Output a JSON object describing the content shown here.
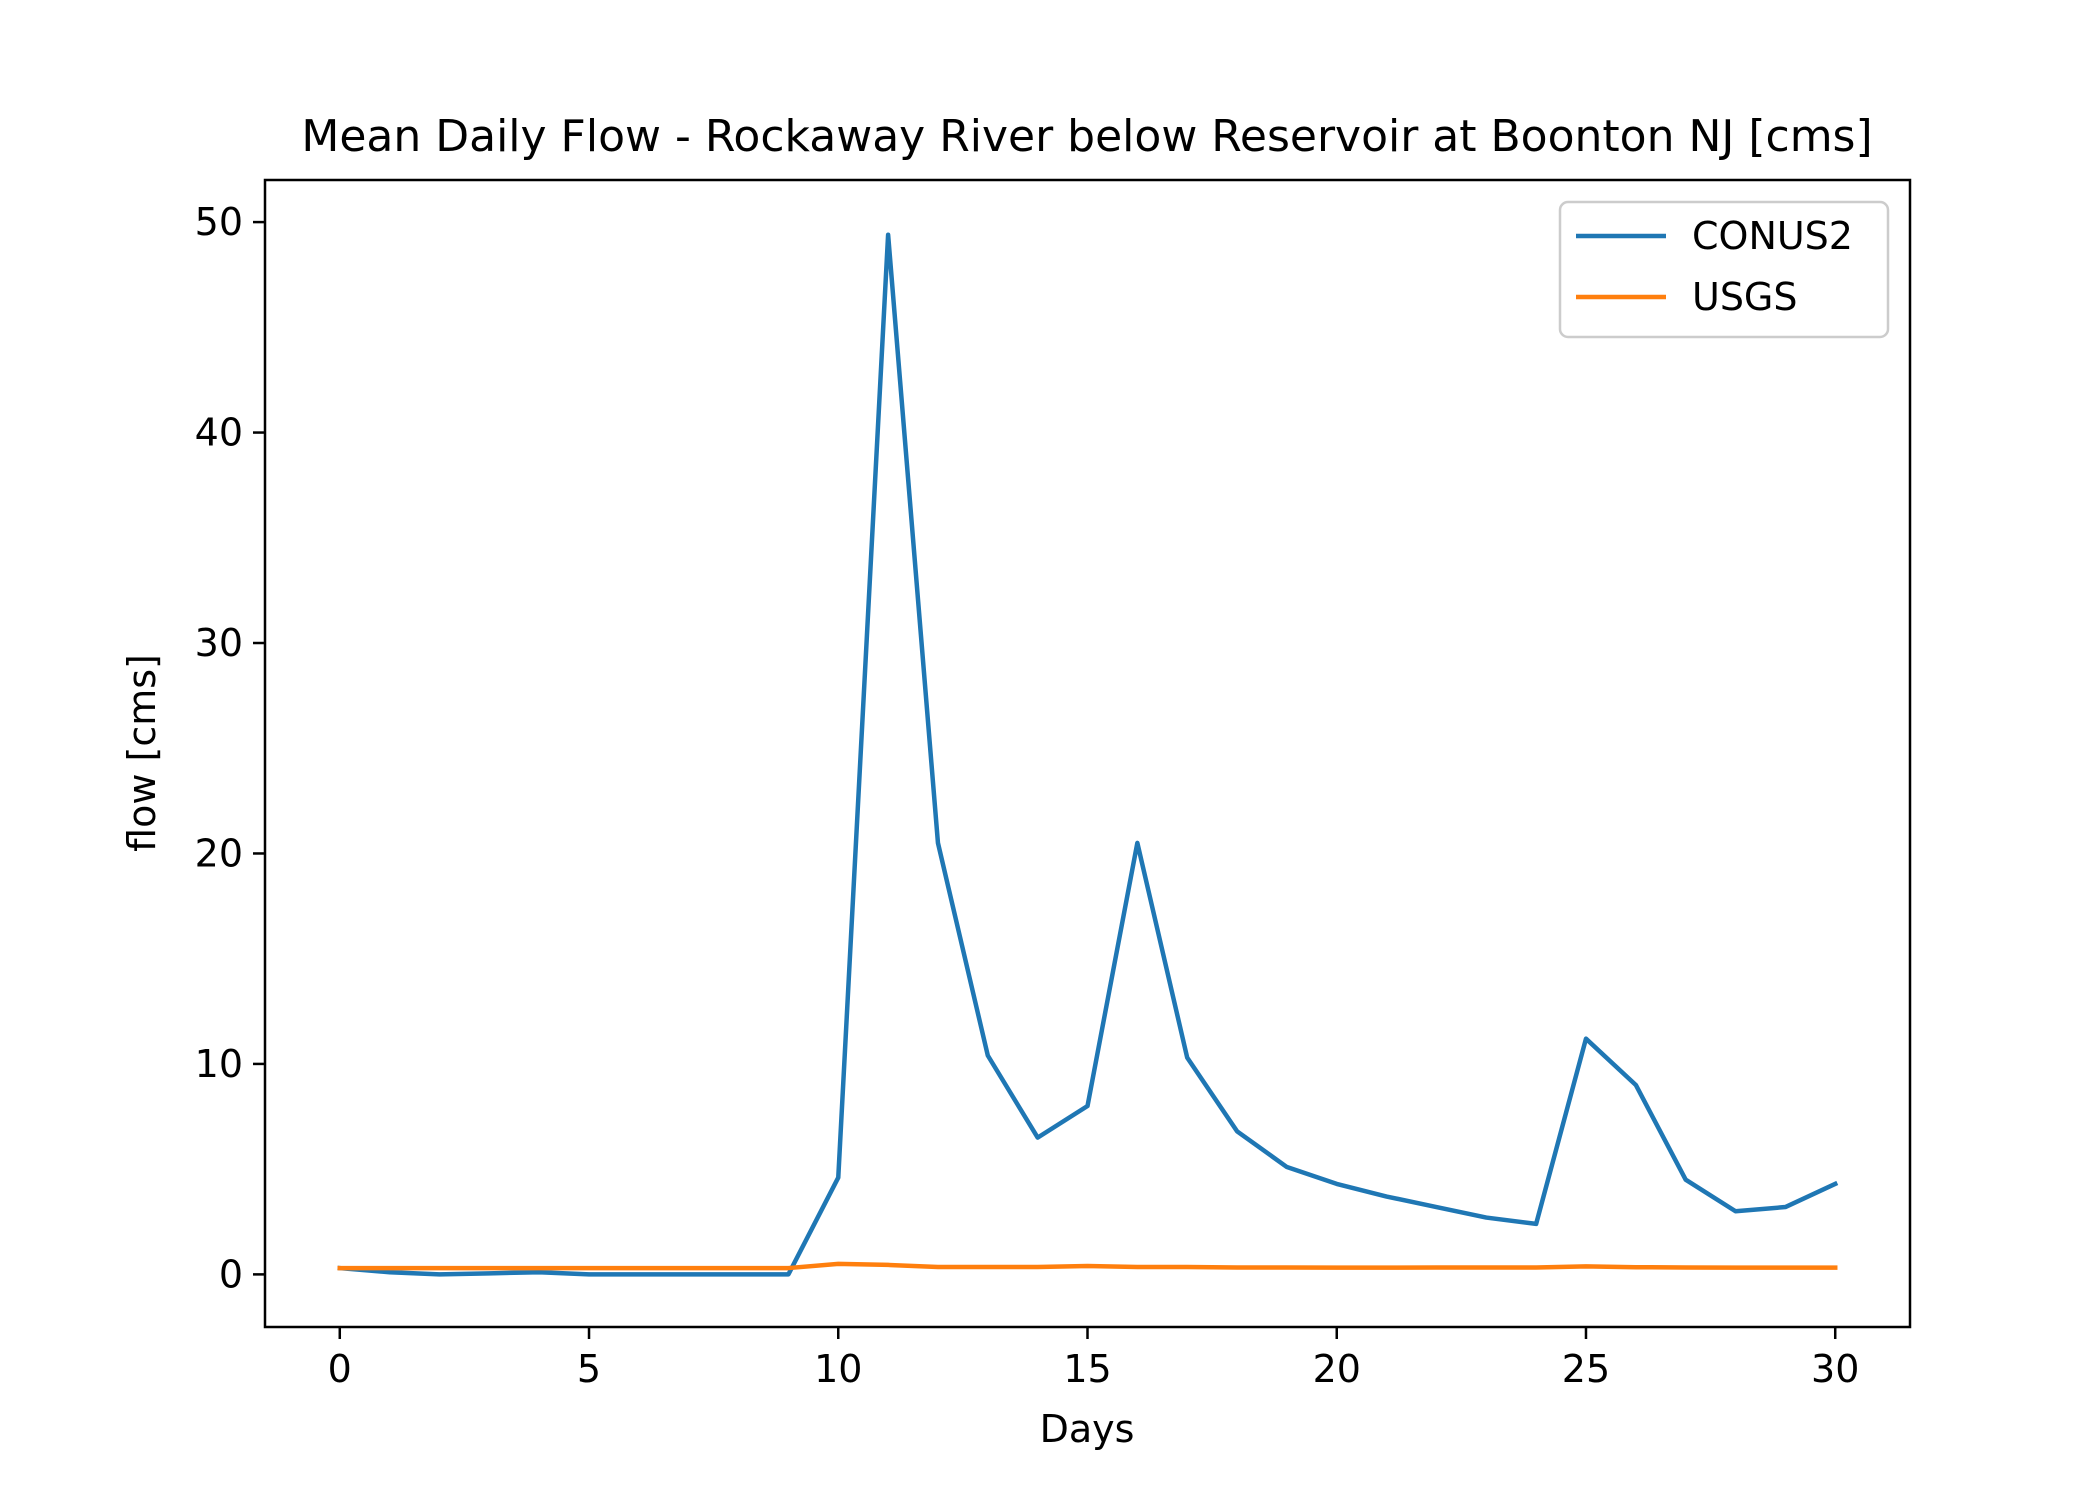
{
  "chart_data": {
    "type": "line",
    "title": "Mean Daily Flow - Rockaway River below Reservoir at Boonton NJ [cms]",
    "xlabel": "Days",
    "ylabel": "flow [cms]",
    "xlim": [
      -1.5,
      31.5
    ],
    "ylim": [
      -2.5,
      52
    ],
    "xticks": [
      0,
      5,
      10,
      15,
      20,
      25,
      30
    ],
    "yticks": [
      0,
      10,
      20,
      30,
      40,
      50
    ],
    "grid": false,
    "legend_position": "top-right",
    "x": [
      0,
      1,
      2,
      3,
      4,
      5,
      6,
      7,
      8,
      9,
      10,
      11,
      12,
      13,
      14,
      15,
      16,
      17,
      18,
      19,
      20,
      21,
      22,
      23,
      24,
      25,
      26,
      27,
      28,
      29,
      30
    ],
    "series": [
      {
        "name": "CONUS2",
        "color": "#1f77b4",
        "values": [
          0.3,
          0.1,
          0.0,
          0.05,
          0.1,
          0.0,
          0.0,
          0.0,
          0.0,
          0.0,
          4.6,
          49.4,
          20.5,
          10.4,
          6.5,
          8.0,
          20.5,
          10.3,
          6.8,
          5.1,
          4.3,
          3.7,
          3.2,
          2.7,
          2.4,
          11.2,
          9.0,
          4.5,
          3.0,
          3.2,
          4.3
        ]
      },
      {
        "name": "USGS",
        "color": "#ff7f0e",
        "values": [
          0.3,
          0.3,
          0.3,
          0.3,
          0.3,
          0.3,
          0.3,
          0.3,
          0.3,
          0.3,
          0.5,
          0.45,
          0.35,
          0.35,
          0.35,
          0.4,
          0.35,
          0.35,
          0.33,
          0.33,
          0.32,
          0.32,
          0.33,
          0.33,
          0.33,
          0.38,
          0.34,
          0.33,
          0.32,
          0.32,
          0.32
        ]
      }
    ]
  }
}
